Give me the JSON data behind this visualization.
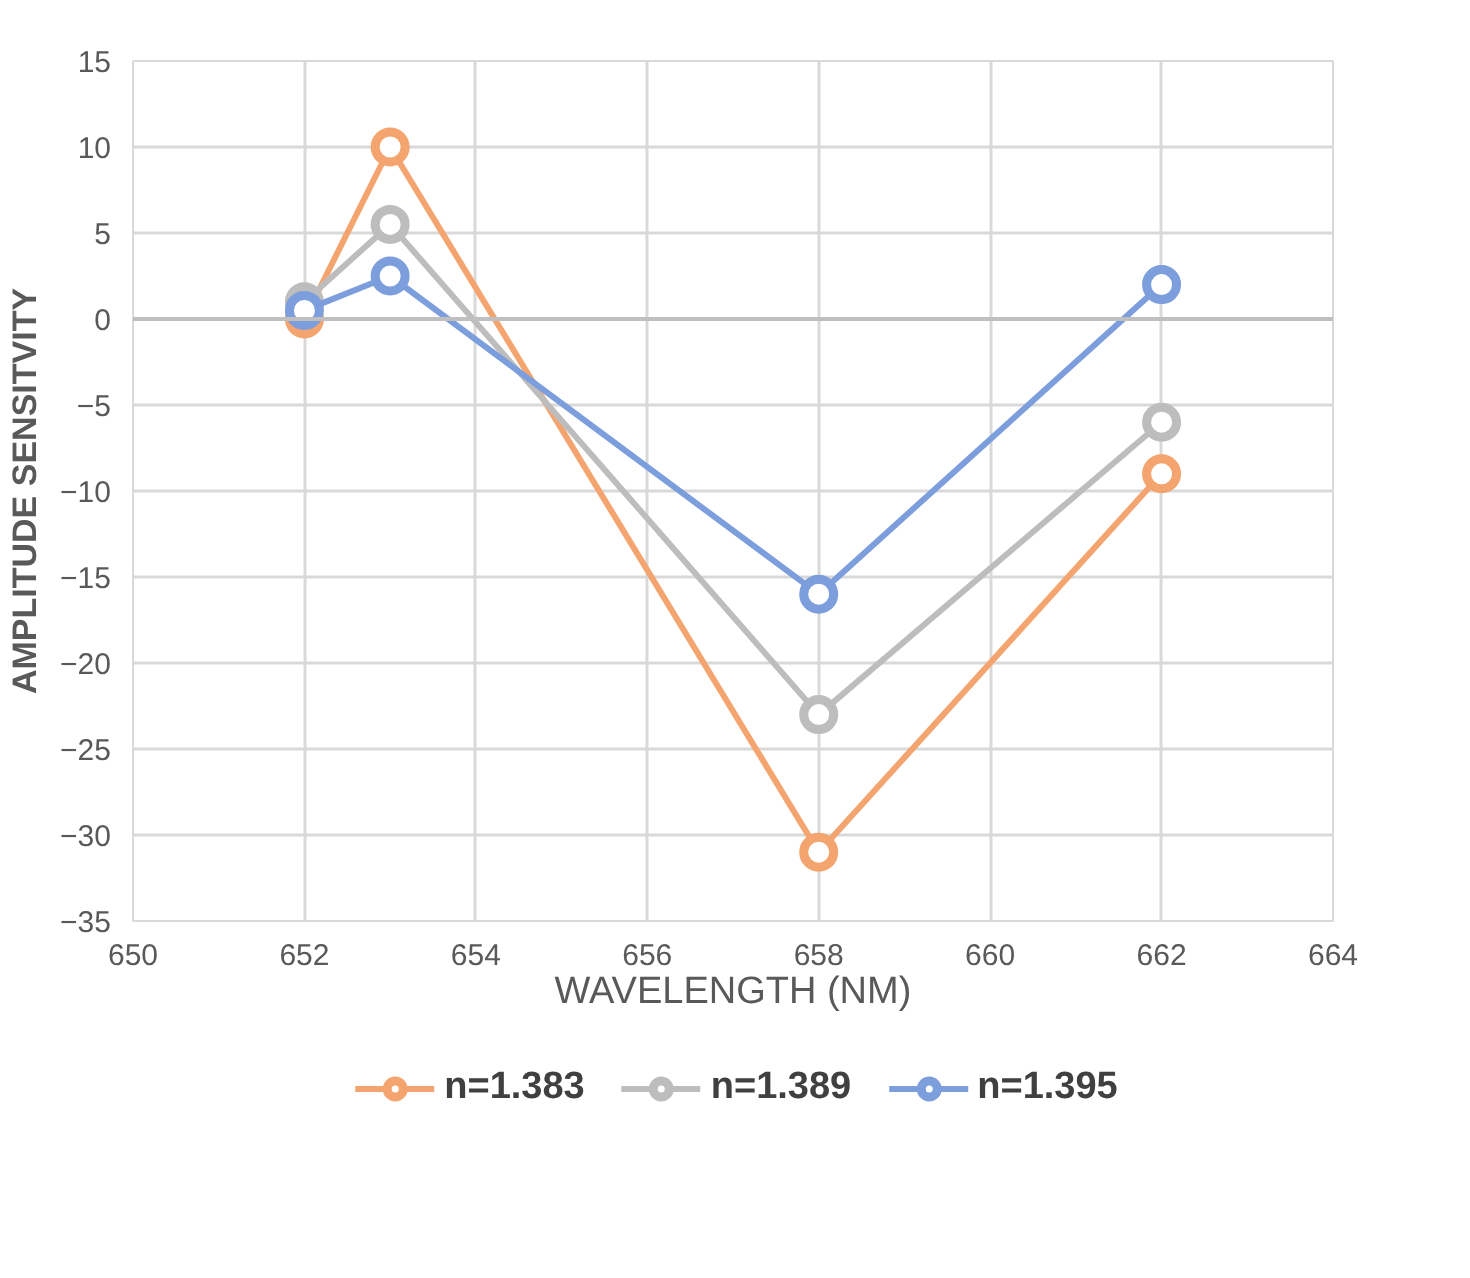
{
  "chart_data": {
    "type": "line",
    "xlabel": "WAVELENGTH (NM)",
    "ylabel": "AMPLITUDE SENSITVITY",
    "x": [
      652,
      653,
      658,
      662
    ],
    "series": [
      {
        "name": "n=1.383",
        "color": "#f4a46e",
        "values": [
          0,
          10,
          -31,
          -9
        ]
      },
      {
        "name": "n=1.389",
        "color": "#bdbdbd",
        "values": [
          1,
          5.5,
          -23,
          -6
        ]
      },
      {
        "name": "n=1.395",
        "color": "#7c9edc",
        "values": [
          0.5,
          2.5,
          -16,
          2
        ]
      }
    ],
    "xlim": [
      650,
      664
    ],
    "xticks": [
      650,
      652,
      654,
      656,
      658,
      660,
      662,
      664
    ],
    "ylim": [
      -35,
      15
    ],
    "yticks": [
      -35,
      -30,
      -25,
      -20,
      -15,
      -10,
      -5,
      0,
      5,
      10,
      15
    ],
    "grid": true,
    "legend": "bottom",
    "marker": "circle",
    "line_style": "solid"
  }
}
